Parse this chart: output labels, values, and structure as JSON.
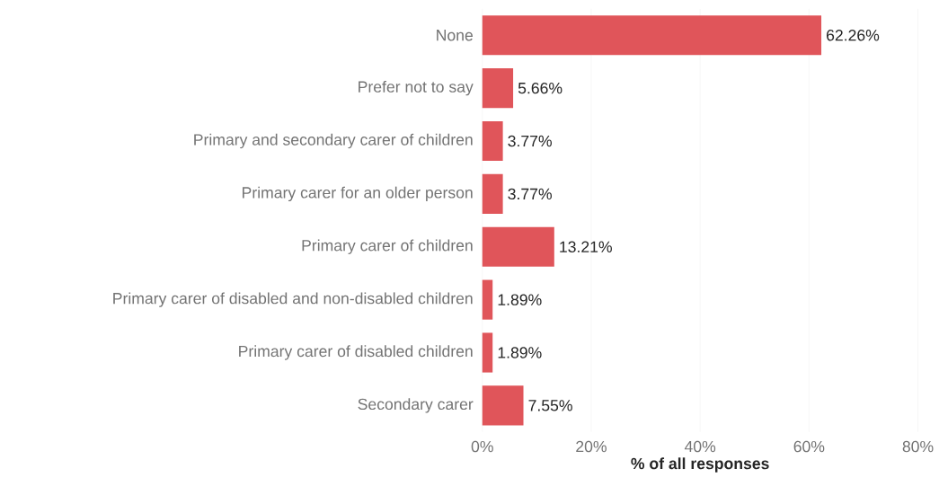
{
  "chart_data": {
    "type": "bar",
    "orientation": "horizontal",
    "xlabel": "% of all responses",
    "categories": [
      "None",
      "Prefer not to say",
      "Primary and secondary carer of children",
      "Primary carer for an older person",
      "Primary carer of children",
      "Primary carer of disabled and non-disabled children",
      "Primary carer of disabled children",
      "Secondary carer"
    ],
    "values": [
      62.26,
      5.66,
      3.77,
      3.77,
      13.21,
      1.89,
      1.89,
      7.55
    ],
    "value_labels": [
      "62.26%",
      "5.66%",
      "3.77%",
      "3.77%",
      "13.21%",
      "1.89%",
      "1.89%",
      "7.55%"
    ],
    "color": "#e0555a",
    "xlim": [
      0,
      80
    ],
    "xticks": [
      {
        "value": 0,
        "label": "0%"
      },
      {
        "value": 20,
        "label": "20%"
      },
      {
        "value": 40,
        "label": "40%"
      },
      {
        "value": 60,
        "label": "60%"
      },
      {
        "value": 80,
        "label": "80%"
      }
    ],
    "grid": "x"
  }
}
